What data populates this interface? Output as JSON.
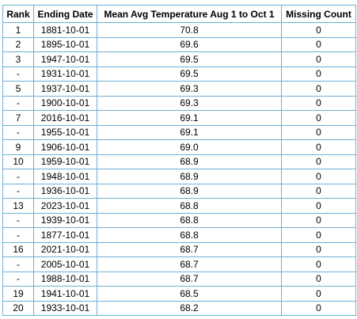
{
  "table": {
    "header": [
      "Rank",
      "Ending Date",
      "Mean Avg Temperature Aug 1 to Oct 1",
      "Missing Count"
    ],
    "rows": [
      [
        "1",
        "1881-10-01",
        "70.8",
        "0"
      ],
      [
        "2",
        "1895-10-01",
        "69.6",
        "0"
      ],
      [
        "3",
        "1947-10-01",
        "69.5",
        "0"
      ],
      [
        "-",
        "1931-10-01",
        "69.5",
        "0"
      ],
      [
        "5",
        "1937-10-01",
        "69.3",
        "0"
      ],
      [
        "-",
        "1900-10-01",
        "69.3",
        "0"
      ],
      [
        "7",
        "2016-10-01",
        "69.1",
        "0"
      ],
      [
        "-",
        "1955-10-01",
        "69.1",
        "0"
      ],
      [
        "9",
        "1906-10-01",
        "69.0",
        "0"
      ],
      [
        "10",
        "1959-10-01",
        "68.9",
        "0"
      ],
      [
        "-",
        "1948-10-01",
        "68.9",
        "0"
      ],
      [
        "-",
        "1936-10-01",
        "68.9",
        "0"
      ],
      [
        "13",
        "2023-10-01",
        "68.8",
        "0"
      ],
      [
        "-",
        "1939-10-01",
        "68.8",
        "0"
      ],
      [
        "-",
        "1877-10-01",
        "68.8",
        "0"
      ],
      [
        "16",
        "2021-10-01",
        "68.7",
        "0"
      ],
      [
        "-",
        "2005-10-01",
        "68.7",
        "0"
      ],
      [
        "-",
        "1988-10-01",
        "68.7",
        "0"
      ],
      [
        "19",
        "1941-10-01",
        "68.5",
        "0"
      ],
      [
        "20",
        "1933-10-01",
        "68.2",
        "0"
      ]
    ]
  }
}
